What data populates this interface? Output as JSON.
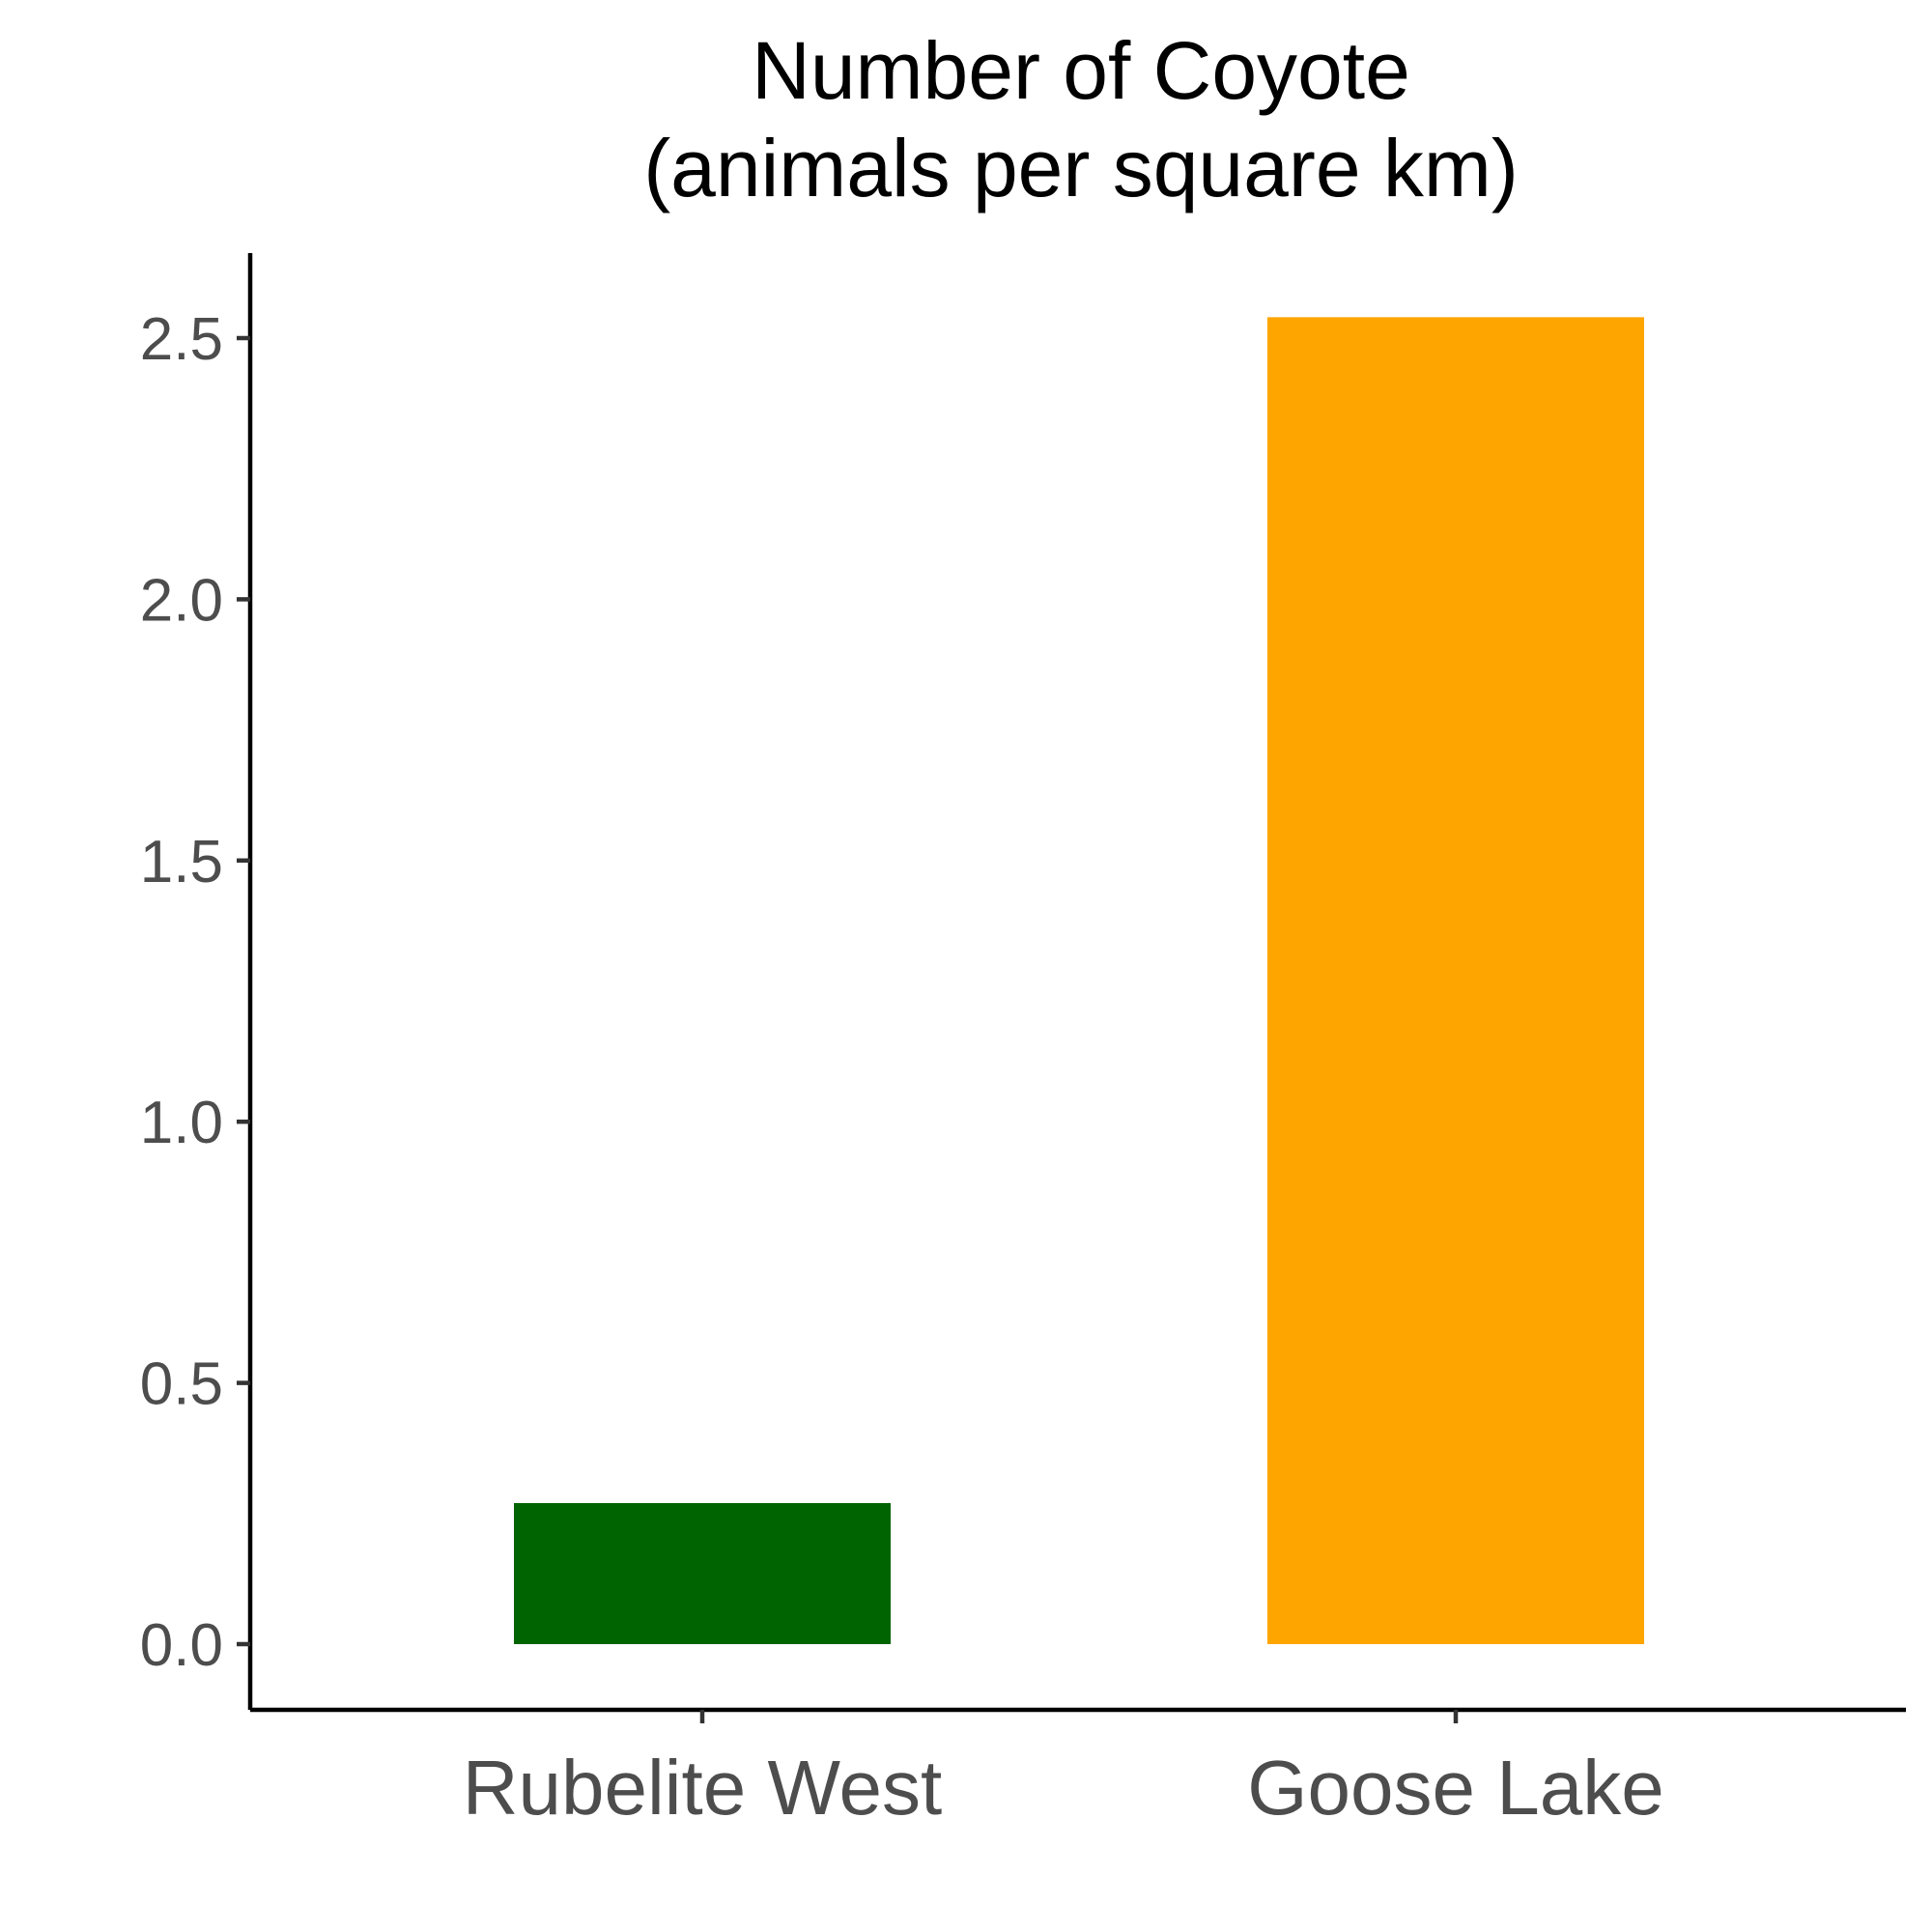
{
  "chart_data": {
    "type": "bar",
    "title": [
      "Number of Coyote",
      "(animals per square km)"
    ],
    "xlabel": "",
    "ylabel": "",
    "categories": [
      "Rubelite West",
      "Goose Lake"
    ],
    "values": [
      0.27,
      2.54
    ],
    "colors": [
      "#006400",
      "#FFA500"
    ],
    "ylim": [
      -0.125,
      2.665
    ],
    "yticks": [
      0.0,
      0.5,
      1.0,
      1.5,
      2.0,
      2.5
    ],
    "ytick_labels": [
      "0.0",
      "0.5",
      "1.0",
      "1.5",
      "2.0",
      "2.5"
    ],
    "grid": false,
    "legend": "none"
  }
}
